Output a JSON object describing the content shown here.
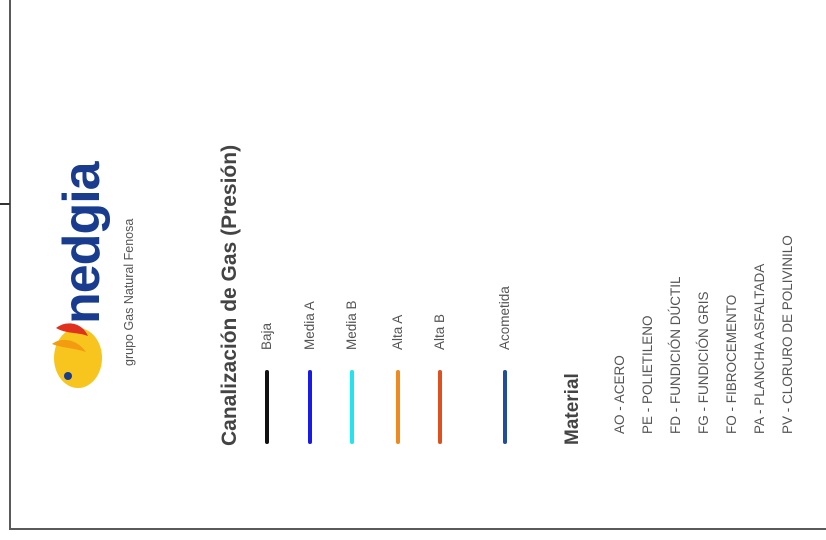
{
  "logo": {
    "name": "nedgia",
    "subtitle": "grupo Gas Natural Fenosa",
    "colors": {
      "orange": "#f39c12",
      "red": "#e0301e",
      "yellow": "#f7c51d",
      "blue": "#1a3c8f"
    }
  },
  "legend": {
    "title": "Canalización de Gas (Presión)",
    "items": [
      {
        "label": "Baja",
        "color": "#111111"
      },
      {
        "label": "Media A",
        "color": "#1a1ae6"
      },
      {
        "label": "Media B",
        "color": "#22e3f0"
      },
      {
        "label": "Alta A",
        "color": "#f08a1c"
      },
      {
        "label": "Alta B",
        "color": "#e0501e"
      },
      {
        "label": "Acometida",
        "color": "#1f4e9a"
      }
    ]
  },
  "material": {
    "title": "Material",
    "items": [
      "AO - ACERO",
      "PE - POLIETILENO",
      "FD - FUNDICIÓN DÚCTIL",
      "FG - FUNDICIÓN GRIS",
      "FO - FIBROCEMENTO",
      "PA - PLANCHA ASFALTADA",
      "PV - CLORURO DE POLIVINILO"
    ]
  }
}
